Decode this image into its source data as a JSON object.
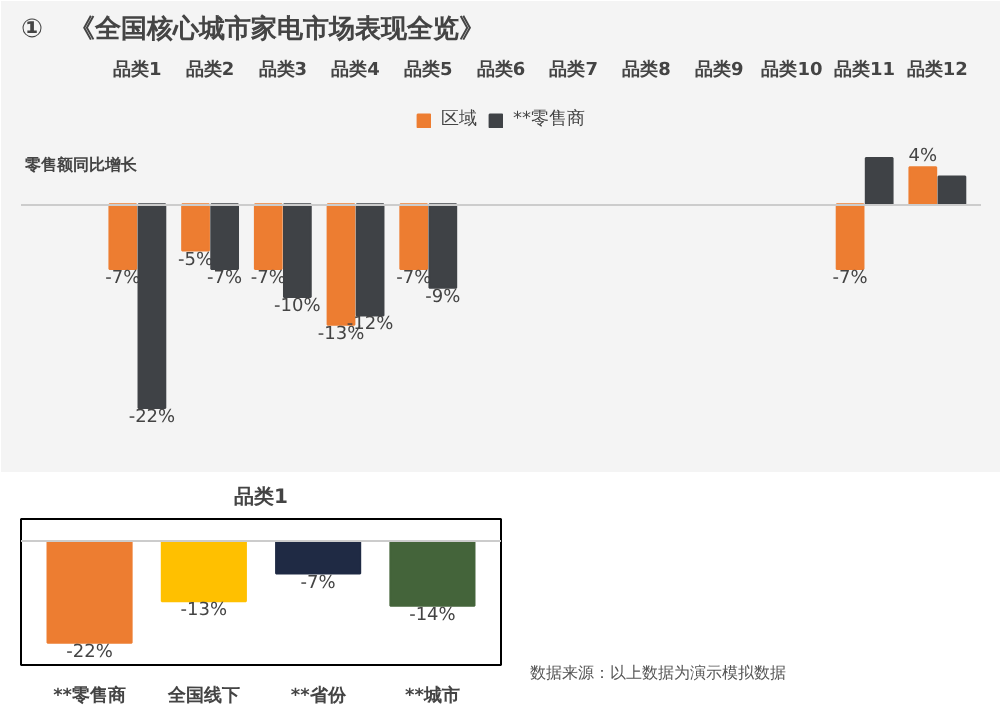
{
  "chart_data": [
    {
      "type": "bar",
      "title": "①　《全国核心城市家电市场表现全览》",
      "ylabel": "零售额同比增长",
      "categories": [
        "品类1",
        "品类2",
        "品类3",
        "品类4",
        "品类5",
        "品类6",
        "品类7",
        "品类8",
        "品类9",
        "品类10",
        "品类11",
        "品类12"
      ],
      "series": [
        {
          "name": "区域",
          "color": "#ed7d31",
          "values": [
            -7,
            -5,
            -7,
            -13,
            -7,
            null,
            null,
            null,
            null,
            null,
            -7,
            4
          ],
          "value_labels": [
            "-7%",
            "-5%",
            "-7%",
            "-13%",
            "-7%",
            null,
            null,
            null,
            null,
            null,
            "-7%",
            "4%"
          ]
        },
        {
          "name": "**零售商",
          "color": "#3f4246",
          "values": [
            -22,
            -7,
            -10,
            -12,
            -9,
            null,
            null,
            null,
            null,
            null,
            5,
            3
          ],
          "value_labels": [
            "-22%",
            "-7%",
            "-10%",
            "-12%",
            "-9%",
            null,
            null,
            null,
            null,
            null,
            null,
            null
          ]
        }
      ],
      "legend": "top",
      "annotations": [
        "数据来源：以上数据为演示模拟数据"
      ]
    },
    {
      "type": "bar",
      "title": "品类1",
      "categories": [
        "**零售商",
        "全国线下",
        "**省份",
        "**城市"
      ],
      "values": [
        -22,
        -13,
        -7,
        -14
      ],
      "value_labels": [
        "-22%",
        "-13%",
        "-7%",
        "-14%"
      ],
      "colors": [
        "#ed7d31",
        "#ffc000",
        "#1f2a44",
        "#44643a"
      ]
    }
  ]
}
